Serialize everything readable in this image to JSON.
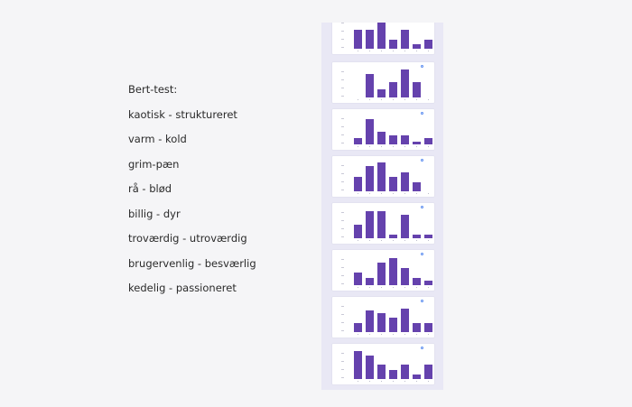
{
  "labels": {
    "heading": "Bert-test:",
    "items": [
      "kaotisk - struktureret",
      "varm - kold",
      "grim-pæn",
      "rå - blød",
      "billig - dyr",
      "troværdig - utroværdig",
      "brugervenlig - besværlig",
      "kedelig - passioneret"
    ]
  },
  "chart_data": [
    {
      "type": "bar",
      "values": [
        50,
        50,
        75,
        25,
        50,
        12,
        25
      ]
    },
    {
      "type": "bar",
      "values": [
        0,
        63,
        21,
        42,
        75,
        42,
        0
      ]
    },
    {
      "type": "bar",
      "values": [
        17,
        67,
        33,
        25,
        25,
        8,
        17
      ]
    },
    {
      "type": "bar",
      "values": [
        38,
        67,
        78,
        38,
        50,
        25,
        0
      ]
    },
    {
      "type": "bar",
      "values": [
        36,
        73,
        73,
        9,
        64,
        9,
        9
      ]
    },
    {
      "type": "bar",
      "values": [
        33,
        20,
        60,
        73,
        47,
        20,
        13
      ]
    },
    {
      "type": "bar",
      "values": [
        25,
        58,
        50,
        38,
        63,
        25,
        25
      ]
    },
    {
      "type": "bar",
      "values": [
        75,
        63,
        38,
        25,
        38,
        13,
        38
      ]
    }
  ]
}
